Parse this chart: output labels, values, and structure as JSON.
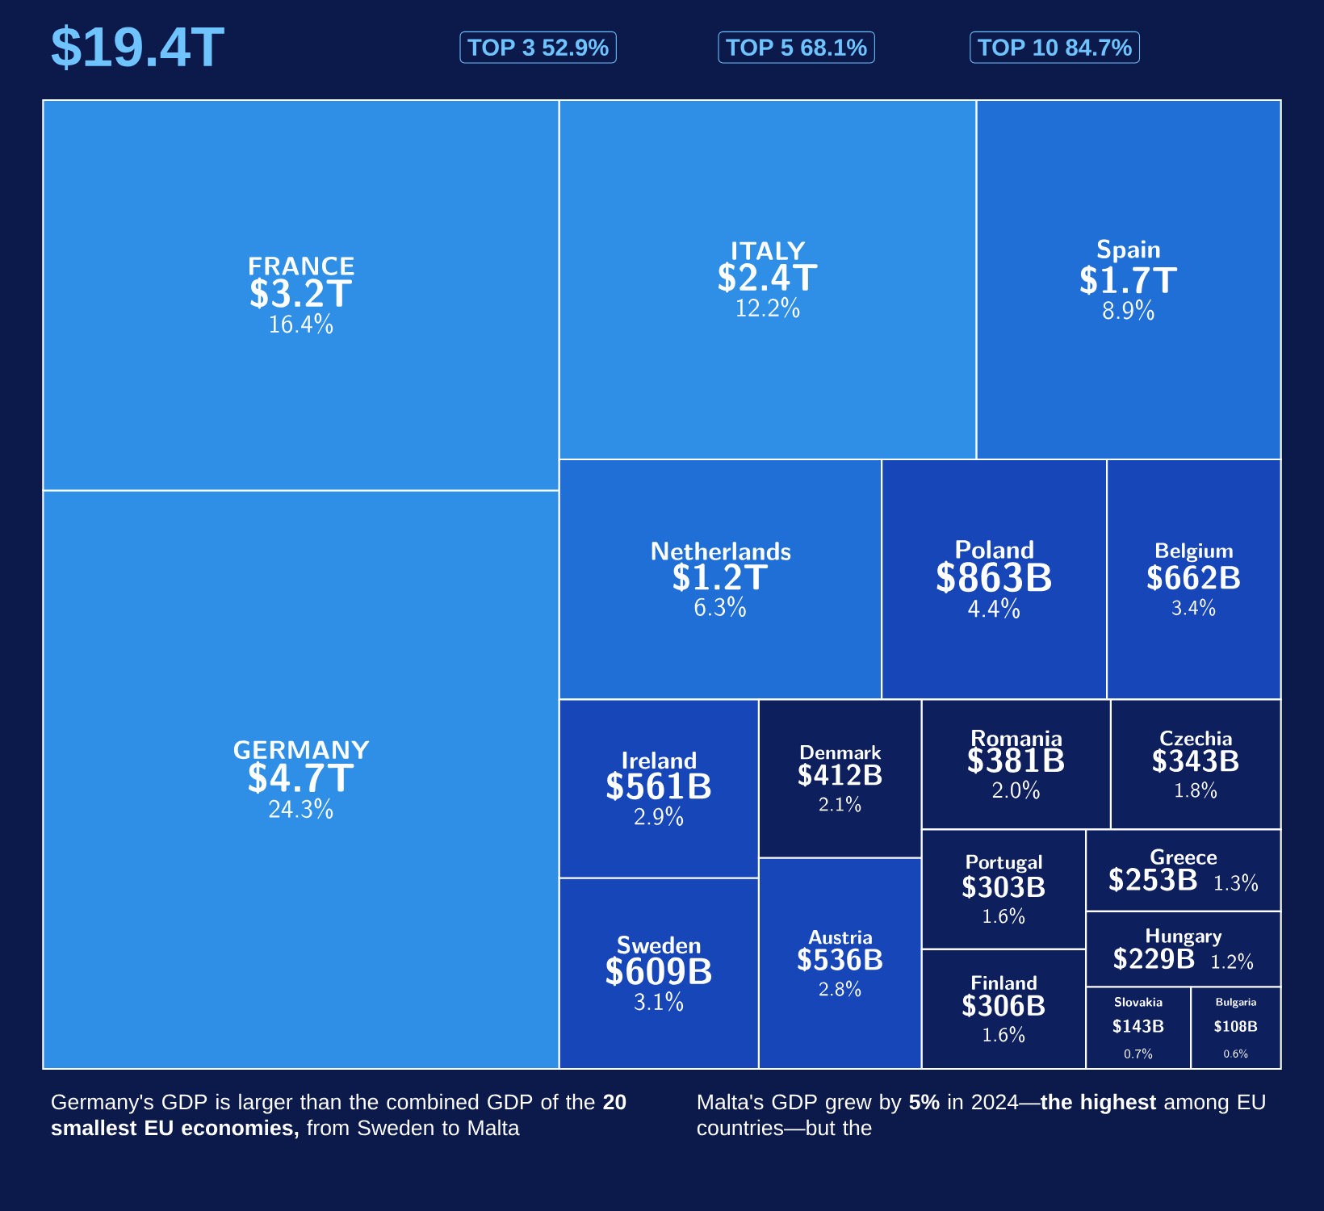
{
  "chart_data": {
    "type": "other",
    "categories": [
      "GERMANY",
      "FRANCE",
      "ITALY",
      "Spain",
      "Netherlands",
      "Poland",
      "Belgium",
      "Sweden",
      "Ireland",
      "Austria",
      "Denmark",
      "Romania",
      "Czechia",
      "Finland",
      "Portugal",
      "Greece",
      "Hungary",
      "Slovakia",
      "Bulgaria"
    ],
    "series": [
      {
        "values": [
          4.7,
          3.2,
          2.4,
          1.7,
          1.2,
          null,
          null,
          null,
          null,
          null,
          null,
          null,
          null,
          null,
          null,
          null,
          null,
          null,
          null
        ],
        "value_labels": [
          "$4.7T",
          "$3.2T",
          "$2.4T",
          "$1.7T",
          "$1.2T",
          null,
          null,
          null,
          null,
          null,
          null,
          null,
          null,
          null,
          null,
          null,
          null,
          null,
          null
        ],
        "colors": [
          "#2f8fe6",
          "#2f8fe6",
          "#2f8fe6",
          "#1f6fd6",
          "#1f6fd6",
          null,
          null,
          null,
          null,
          null,
          null,
          null,
          null,
          null,
          null,
          null,
          null,
          null,
          null
        ]
      },
      {
        "values": [
          null,
          null,
          null,
          null,
          null,
          863,
          662,
          609,
          561,
          536,
          412,
          381,
          343,
          306,
          303,
          253,
          229,
          143,
          108
        ],
        "value_labels": [
          null,
          null,
          null,
          null,
          null,
          "$863B",
          "$662B",
          "$609B",
          "$561B",
          "$536B",
          "$412B",
          "$381B",
          "$343B",
          "$306B",
          "$303B",
          "$253B",
          "$229B",
          "$143B",
          "$108B"
        ],
        "colors": [
          null,
          null,
          null,
          null,
          null,
          "#1646b8",
          "#1646b8",
          "#1646b8",
          "#1646b8",
          "#1646b8",
          "#0d1f5c",
          "#0d1f5c",
          "#0d1f5c",
          "#0d1f5c",
          "#0d1f5c",
          "#0d1f5c",
          "#0d1f5c",
          "#0d1f5c",
          "#0d1f5c"
        ]
      },
      {
        "values": [
          24.3,
          16.4,
          12.2,
          8.9,
          6.3,
          4.4,
          3.4,
          3.1,
          2.9,
          2.8,
          2.1,
          2.0,
          1.8,
          1.6,
          1.6,
          1.3,
          1.2,
          0.7,
          0.6
        ],
        "value_labels": [
          "24.3%",
          "16.4%",
          "12.2%",
          "8.9%",
          "6.3%",
          "4.4%",
          "3.4%",
          "3.1%",
          "2.9%",
          "2.8%",
          "2.1%",
          "2.0%",
          "1.8%",
          "1.6%",
          "1.6%",
          "1.3%",
          "1.2%",
          "0.7%",
          "0.6%"
        ],
        "colors": [
          "#2f8fe6",
          "#2f8fe6",
          "#2f8fe6",
          "#1f6fd6",
          "#1f6fd6",
          "#1646b8",
          "#1646b8",
          "#1646b8",
          "#1646b8",
          "#1646b8",
          "#0d1f5c",
          "#0d1f5c",
          "#0d1f5c",
          "#0d1f5c",
          "#0d1f5c",
          "#0d1f5c",
          "#0d1f5c",
          "#0d1f5c",
          "#0d1f5c"
        ]
      }
    ],
    "annotations": [
      "$19.4T",
      "TOP 3 52.9%",
      "TOP 5 68.1%",
      "TOP 10 84.7%",
      "Germany's GDP is larger than the combined GDP of the **20 smallest EU economies,** from Sweden to Malta",
      "Malta's GDP grew by **5%** in 2024—**the highest** among EU countries—but the"
    ]
  }
}
